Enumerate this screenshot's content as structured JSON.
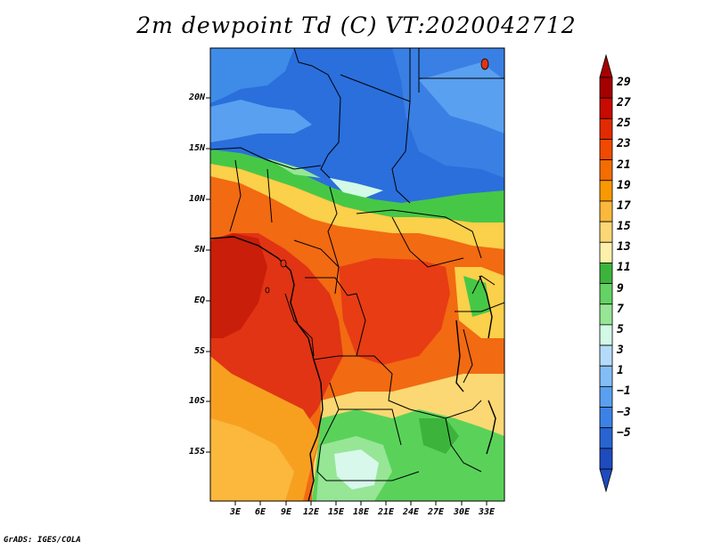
{
  "title": "2m dewpoint Td (C) VT:2020042712",
  "credit": "GrADS: IGES/COLA",
  "lat_labels": [
    "20N",
    "15N",
    "10N",
    "5N",
    "EQ",
    "5S",
    "10S",
    "15S"
  ],
  "lon_labels": [
    "3E",
    "6E",
    "9E",
    "12E",
    "15E",
    "18E",
    "21E",
    "24E",
    "27E",
    "30E",
    "33E"
  ],
  "colorbar": {
    "labels": [
      "29",
      "27",
      "25",
      "23",
      "21",
      "19",
      "17",
      "15",
      "13",
      "11",
      "9",
      "7",
      "5",
      "3",
      "1",
      "−1",
      "−3",
      "−5"
    ],
    "colors": [
      "#a50000",
      "#c80a00",
      "#e12a00",
      "#f04a00",
      "#f36d00",
      "#f99900",
      "#fbb83c",
      "#fbd873",
      "#fdf0aa",
      "#3cb43c",
      "#64d264",
      "#96e696",
      "#d2fae6",
      "#b4dcfa",
      "#82bef5",
      "#5aa0f0",
      "#3c82e6",
      "#2864d2",
      "#1e4bbe"
    ]
  },
  "map": {
    "land_colors": {
      "north_blue": "#2a6fdc",
      "sahel_green": "#46c846",
      "coast_red": "#e03414",
      "interior_orange": "#f06a10",
      "south_orange": "#f7a020",
      "south_green": "#5ad25a",
      "south_light": "#d8f8ec"
    }
  }
}
